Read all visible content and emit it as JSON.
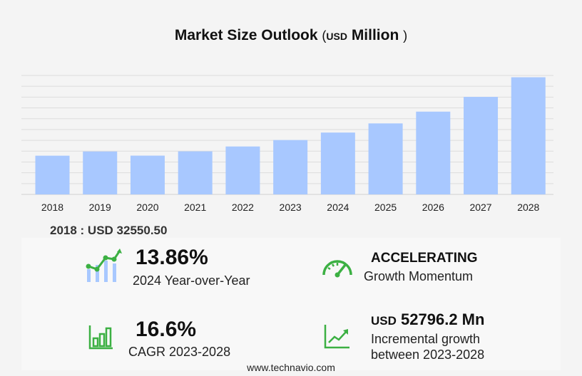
{
  "title": {
    "main": "Market Size Outlook",
    "open_paren": "(",
    "unit_small": "USD",
    "unit": "Million",
    "close_paren": ")"
  },
  "chart_data": {
    "type": "bar",
    "categories": [
      "2018",
      "2019",
      "2020",
      "2021",
      "2022",
      "2023",
      "2024",
      "2025",
      "2026",
      "2027",
      "2028"
    ],
    "values": [
      32550.5,
      36100,
      32600,
      36200,
      40300,
      45700,
      52000,
      59700,
      69600,
      82000,
      98500
    ],
    "ylim": [
      0,
      100000
    ],
    "grid": true,
    "bar_color": "#a8c8ff",
    "grid_color": "#dcdcdc"
  },
  "base_year": {
    "text": "2018 : USD  32550.50"
  },
  "kpis": {
    "yoy": {
      "value": "13.86%",
      "label": "2024 Year-over-Year"
    },
    "momentum": {
      "value": "ACCELERATING",
      "label": "Growth Momentum"
    },
    "cagr": {
      "value": "16.6%",
      "label": "CAGR 2023-2028"
    },
    "incremental": {
      "currency": "USD",
      "value": "52796.2 Mn",
      "label_line1": "Incremental growth",
      "label_line2": "between 2023-2028"
    }
  },
  "icons": {
    "yoy": "growth-chart-icon",
    "momentum": "speedometer-icon",
    "cagr": "bar-chart-icon",
    "incremental": "trend-line-icon"
  },
  "colors": {
    "accent_green": "#3cb043",
    "bar_blue": "#a8c8ff"
  },
  "footer": {
    "source": "www.technavio.com"
  }
}
